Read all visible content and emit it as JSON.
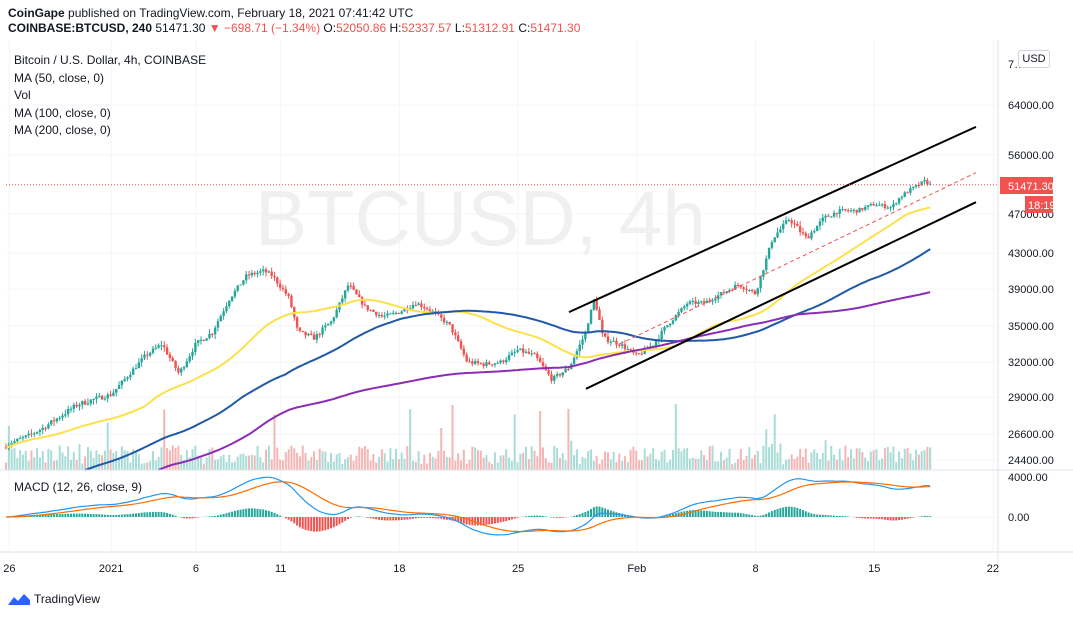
{
  "header": {
    "publisher": "CoinGape",
    "published_text": "published on TradingView.com, February 18, 2021 07:41:42 UTC",
    "symbol": "COINBASE:BTCUSD, 240",
    "last": "51471.30",
    "change": "▼ −698.71 (−1.34%)",
    "o_label": "O:",
    "o_val": "52050.86",
    "h_label": "H:",
    "h_val": "52337.57",
    "l_label": "L:",
    "l_val": "51312.91",
    "c_label": "C:",
    "c_val": "51471.30"
  },
  "legend": {
    "title": "Bitcoin / U.S. Dollar, 4h, COINBASE",
    "ma50": "MA (50, close, 0)",
    "vol": "Vol",
    "ma100": "MA (100, close, 0)",
    "ma200": "MA (200, close, 0)"
  },
  "watermark": "BTCUSD, 4h",
  "currency_badge": "USD",
  "macd_title": "MACD (12, 26, close, 9)",
  "price_badge": "51471.30",
  "countdown_badge": "18:19",
  "footer_logo": "TradingView",
  "colors": {
    "up": "#26a69a",
    "down": "#ef5350",
    "ma50": "#fbe14b",
    "ma100": "#1f59a8",
    "ma200": "#8b2cb5",
    "macd": "#2196f3",
    "signal": "#ff6d00",
    "channel": "#000000"
  },
  "chart_data": {
    "type": "candlestick",
    "y_ticks": [
      "64000.00",
      "56000.00",
      "47000.00",
      "43000.00",
      "39000.00",
      "35000.00",
      "32000.00",
      "29000.00",
      "26600.00",
      "24400.00"
    ],
    "y_tick_values": [
      64000,
      56000,
      47000,
      43000,
      39000,
      35000,
      32000,
      29000,
      26600,
      24400
    ],
    "y_tick_partial": "7….00",
    "macd_ticks": [
      "4000.00",
      "0.00"
    ],
    "x_ticks": [
      "26",
      "2021",
      "6",
      "11",
      "18",
      "25",
      "Feb",
      "8",
      "15",
      "22"
    ],
    "x_tick_days": [
      -6,
      0,
      5,
      10,
      17,
      24,
      31,
      38,
      45,
      52
    ],
    "date_range": [
      "2020-12-26",
      "2021-02-22"
    ],
    "price_anchors": [
      [
        -7,
        24400
      ],
      [
        -6,
        25800
      ],
      [
        -4,
        27000
      ],
      [
        -2,
        28500
      ],
      [
        0,
        29200
      ],
      [
        2,
        32500
      ],
      [
        3,
        33500
      ],
      [
        4,
        31000
      ],
      [
        5,
        33500
      ],
      [
        6,
        34500
      ],
      [
        7,
        38000
      ],
      [
        8,
        40500
      ],
      [
        9,
        41000
      ],
      [
        9.5,
        40500
      ],
      [
        10.5,
        38000
      ],
      [
        11,
        34500
      ],
      [
        12,
        34000
      ],
      [
        13,
        35500
      ],
      [
        14,
        39500
      ],
      [
        15,
        37000
      ],
      [
        16,
        36000
      ],
      [
        17,
        36500
      ],
      [
        18,
        37500
      ],
      [
        19,
        36500
      ],
      [
        20,
        35000
      ],
      [
        21,
        32000
      ],
      [
        22,
        31800
      ],
      [
        23,
        32000
      ],
      [
        24,
        33000
      ],
      [
        25,
        32500
      ],
      [
        26,
        30500
      ],
      [
        27,
        31500
      ],
      [
        28,
        34500
      ],
      [
        28.5,
        38000
      ],
      [
        29,
        34000
      ],
      [
        30,
        33500
      ],
      [
        31,
        32500
      ],
      [
        32,
        33500
      ],
      [
        33,
        35500
      ],
      [
        34,
        37500
      ],
      [
        35,
        37500
      ],
      [
        36,
        38500
      ],
      [
        37,
        39500
      ],
      [
        38,
        38500
      ],
      [
        39,
        44500
      ],
      [
        40,
        46500
      ],
      [
        41,
        44500
      ],
      [
        42,
        46500
      ],
      [
        43,
        47500
      ],
      [
        44,
        47500
      ],
      [
        45,
        48500
      ],
      [
        46,
        48000
      ],
      [
        46.5,
        49500
      ],
      [
        47,
        50500
      ],
      [
        48,
        52000
      ],
      [
        48.3,
        51471
      ]
    ],
    "channel_upper": [
      [
        27,
        36500
      ],
      [
        51,
        60500
      ]
    ],
    "channel_lower": [
      [
        28,
        29700
      ],
      [
        51,
        48800
      ]
    ],
    "channel_mid": [
      [
        30,
        33500
      ],
      [
        51,
        53300
      ]
    ],
    "last_price": 51471.3
  }
}
